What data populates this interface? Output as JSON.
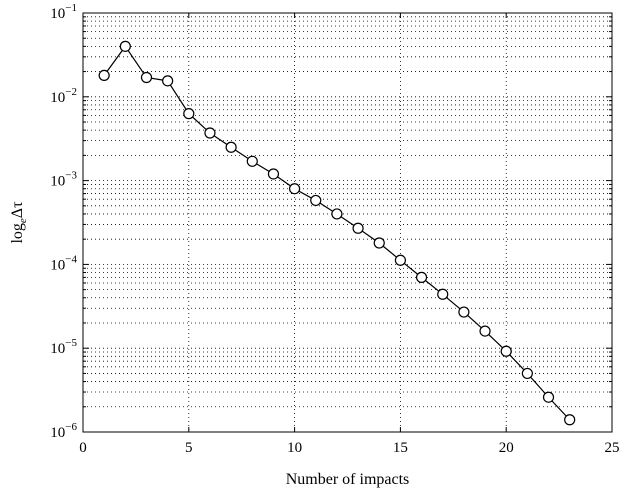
{
  "chart_data": {
    "type": "line",
    "xlabel": "Number of impacts",
    "ylabel": {
      "prefix": "log",
      "subscript": "e",
      "symbol": "Δτ"
    },
    "xlim": [
      0,
      25
    ],
    "ylim": [
      1e-06,
      0.1
    ],
    "yscale": "log",
    "grid": true,
    "x_ticks": [
      0,
      5,
      10,
      15,
      20,
      25
    ],
    "y_ticks": [
      {
        "value": 1e-06,
        "base": "10",
        "exponent": "−6"
      },
      {
        "value": 1e-05,
        "base": "10",
        "exponent": "−5"
      },
      {
        "value": 0.0001,
        "base": "10",
        "exponent": "−4"
      },
      {
        "value": 0.001,
        "base": "10",
        "exponent": "−3"
      },
      {
        "value": 0.01,
        "base": "10",
        "exponent": "−2"
      },
      {
        "value": 0.1,
        "base": "10",
        "exponent": "−1"
      }
    ],
    "series": [
      {
        "marker": "circle",
        "color": "#000000",
        "x": [
          1,
          2,
          3,
          4,
          5,
          6,
          7,
          8,
          9,
          10,
          11,
          12,
          13,
          14,
          15,
          16,
          17,
          18,
          19,
          20,
          21,
          22,
          23
        ],
        "y": [
          0.018,
          0.04,
          0.017,
          0.0155,
          0.0063,
          0.0037,
          0.0025,
          0.0017,
          0.0012,
          0.0008,
          0.00058,
          0.0004,
          0.00027,
          0.00018,
          0.000112,
          7e-05,
          4.4e-05,
          2.7e-05,
          1.6e-05,
          9.2e-06,
          5e-06,
          2.6e-06,
          1.4e-06
        ]
      }
    ]
  }
}
